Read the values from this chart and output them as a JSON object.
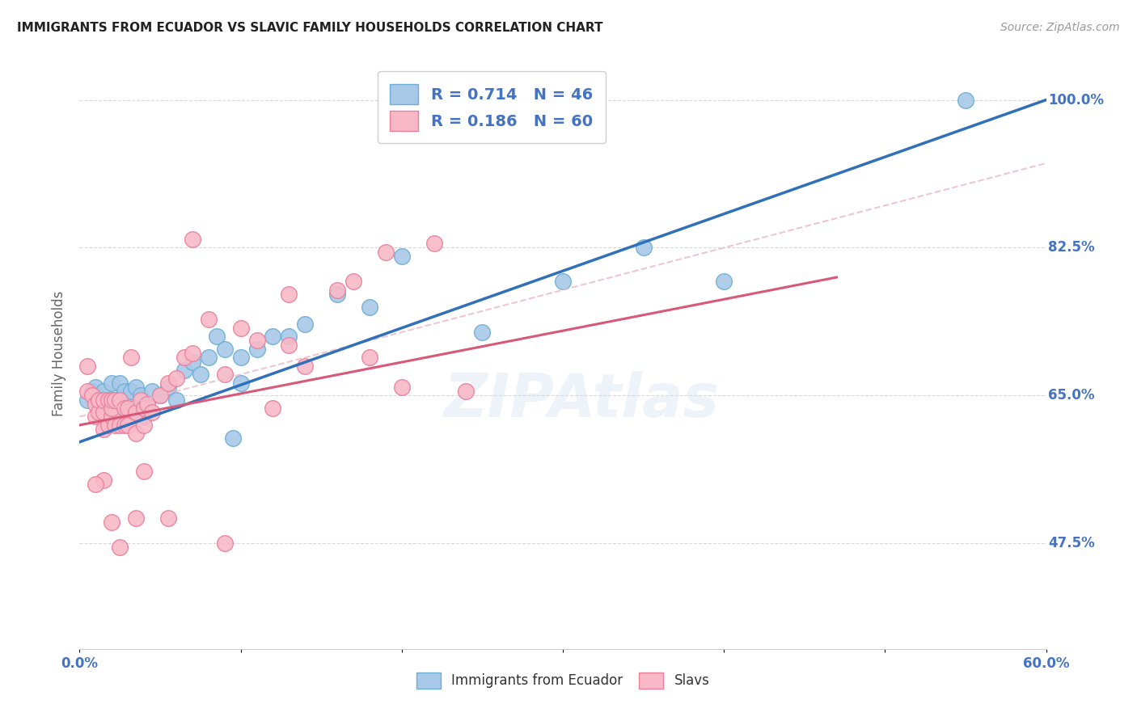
{
  "title": "IMMIGRANTS FROM ECUADOR VS SLAVIC FAMILY HOUSEHOLDS CORRELATION CHART",
  "source": "Source: ZipAtlas.com",
  "ylabel": "Family Households",
  "ytick_labels": [
    "47.5%",
    "65.0%",
    "82.5%",
    "100.0%"
  ],
  "ytick_values": [
    0.475,
    0.65,
    0.825,
    1.0
  ],
  "xlim": [
    0.0,
    0.6
  ],
  "ylim": [
    0.35,
    1.05
  ],
  "watermark": "ZIPAtlas",
  "blue_scatter_x": [
    0.005,
    0.008,
    0.01,
    0.012,
    0.015,
    0.015,
    0.018,
    0.02,
    0.02,
    0.022,
    0.025,
    0.025,
    0.028,
    0.03,
    0.03,
    0.032,
    0.035,
    0.035,
    0.038,
    0.04,
    0.042,
    0.045,
    0.05,
    0.055,
    0.06,
    0.065,
    0.07,
    0.075,
    0.08,
    0.085,
    0.09,
    0.095,
    0.1,
    0.1,
    0.11,
    0.12,
    0.13,
    0.14,
    0.16,
    0.18,
    0.2,
    0.25,
    0.3,
    0.35,
    0.4,
    0.55
  ],
  "blue_scatter_y": [
    0.645,
    0.655,
    0.66,
    0.64,
    0.625,
    0.655,
    0.64,
    0.62,
    0.665,
    0.645,
    0.64,
    0.665,
    0.655,
    0.625,
    0.645,
    0.655,
    0.635,
    0.66,
    0.65,
    0.625,
    0.64,
    0.655,
    0.65,
    0.66,
    0.645,
    0.68,
    0.69,
    0.675,
    0.695,
    0.72,
    0.705,
    0.6,
    0.665,
    0.695,
    0.705,
    0.72,
    0.72,
    0.735,
    0.77,
    0.755,
    0.815,
    0.725,
    0.785,
    0.825,
    0.785,
    1.0
  ],
  "pink_scatter_x": [
    0.005,
    0.005,
    0.008,
    0.01,
    0.01,
    0.012,
    0.012,
    0.015,
    0.015,
    0.015,
    0.018,
    0.018,
    0.02,
    0.02,
    0.02,
    0.022,
    0.022,
    0.025,
    0.025,
    0.028,
    0.028,
    0.03,
    0.03,
    0.032,
    0.035,
    0.035,
    0.038,
    0.04,
    0.04,
    0.042,
    0.045,
    0.05,
    0.055,
    0.06,
    0.065,
    0.07,
    0.08,
    0.09,
    0.1,
    0.11,
    0.12,
    0.13,
    0.14,
    0.16,
    0.17,
    0.18,
    0.19,
    0.2,
    0.22,
    0.24,
    0.09,
    0.13,
    0.07,
    0.04,
    0.055,
    0.035,
    0.025,
    0.02,
    0.015,
    0.01
  ],
  "pink_scatter_y": [
    0.655,
    0.685,
    0.65,
    0.625,
    0.64,
    0.63,
    0.645,
    0.61,
    0.63,
    0.645,
    0.615,
    0.645,
    0.625,
    0.635,
    0.645,
    0.615,
    0.645,
    0.615,
    0.645,
    0.615,
    0.635,
    0.615,
    0.635,
    0.695,
    0.605,
    0.63,
    0.645,
    0.615,
    0.635,
    0.64,
    0.63,
    0.65,
    0.665,
    0.67,
    0.695,
    0.7,
    0.74,
    0.675,
    0.73,
    0.715,
    0.635,
    0.77,
    0.685,
    0.775,
    0.785,
    0.695,
    0.82,
    0.66,
    0.83,
    0.655,
    0.475,
    0.71,
    0.835,
    0.56,
    0.505,
    0.505,
    0.47,
    0.5,
    0.55,
    0.545
  ],
  "blue_line_x": [
    0.0,
    0.6
  ],
  "blue_line_y": [
    0.595,
    1.0
  ],
  "pink_line_x": [
    0.0,
    0.47
  ],
  "pink_line_y": [
    0.615,
    0.79
  ],
  "dashed_line_x": [
    0.0,
    0.6
  ],
  "dashed_line_y": [
    0.625,
    0.925
  ],
  "blue_scatter_color": "#a8c8e8",
  "blue_scatter_edge": "#6aaed6",
  "pink_scatter_color": "#f8b8c8",
  "pink_scatter_edge": "#e8809a",
  "blue_line_color": "#3070b8",
  "pink_line_color": "#d85878",
  "dashed_line_color": "#e8b8c8",
  "grid_color": "#d8d8d8",
  "axis_label_color": "#4472c4",
  "title_color": "#222222",
  "source_color": "#999999"
}
